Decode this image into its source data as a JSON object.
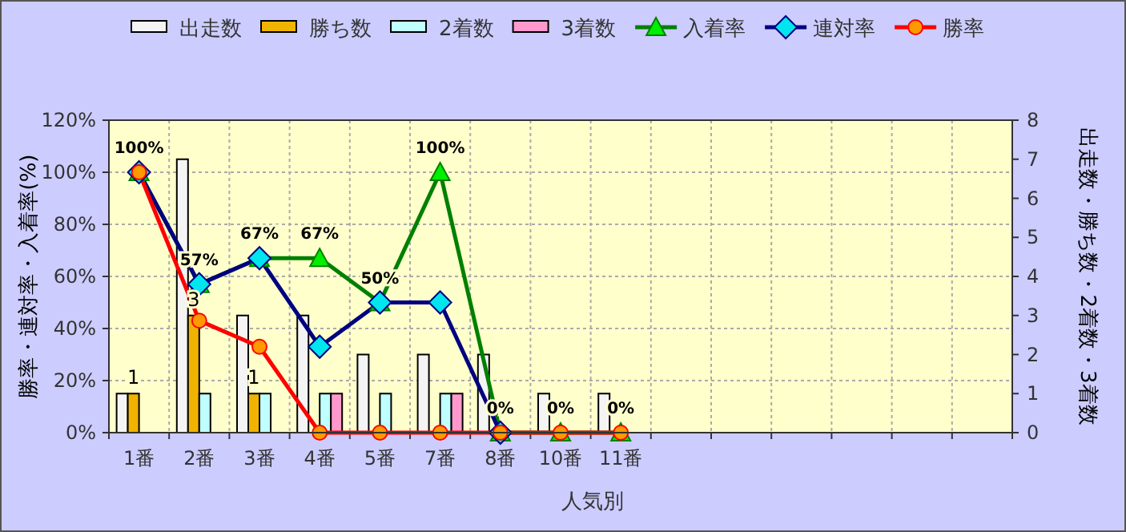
{
  "chart_data": {
    "type": "bar",
    "categories": [
      "1番",
      "2番",
      "3番",
      "4番",
      "5番",
      "7番",
      "8番",
      "10番",
      "11番",
      null,
      null,
      null,
      null,
      null,
      null
    ],
    "xlabel": "人気別",
    "ylabel": "勝率・連対率・入着率(%)",
    "y2label": "出走数・勝ち数・2着数・3着数",
    "ylim": [
      0,
      120
    ],
    "yticks": [
      {
        "value": 0,
        "label": "0%"
      },
      {
        "value": 20,
        "label": "20%"
      },
      {
        "value": 40,
        "label": "40%"
      },
      {
        "value": 60,
        "label": "60%"
      },
      {
        "value": 80,
        "label": "80%"
      },
      {
        "value": 100,
        "label": "100%"
      },
      {
        "value": 120,
        "label": "120%"
      }
    ],
    "y2lim": [
      0,
      8
    ],
    "y2ticks": [
      0,
      1,
      2,
      3,
      4,
      5,
      6,
      7,
      8
    ],
    "grid": true,
    "legend": "top",
    "series": [
      {
        "name": "出走数",
        "axis": "y2",
        "color": "#f4f4f4",
        "values": [
          1,
          7,
          3,
          3,
          2,
          2,
          2,
          1,
          1,
          null,
          null,
          null,
          null,
          null,
          null
        ]
      },
      {
        "name": "勝ち数",
        "axis": "y2",
        "color": "#f0b400",
        "values": [
          1,
          3,
          1,
          0,
          0,
          0,
          0,
          0,
          0,
          null,
          null,
          null,
          null,
          null,
          null
        ],
        "value_labels": [
          "1",
          "3",
          "1",
          null,
          null,
          null,
          null,
          null,
          null,
          null,
          null,
          null,
          null,
          null,
          null
        ]
      },
      {
        "name": "2着数",
        "axis": "y2",
        "color": "#c0ffff",
        "values": [
          0,
          1,
          1,
          1,
          1,
          1,
          0,
          0,
          0,
          null,
          null,
          null,
          null,
          null,
          null
        ]
      },
      {
        "name": "3着数",
        "axis": "y2",
        "color": "#ff99cc",
        "values": [
          0,
          0,
          0,
          1,
          0,
          1,
          0,
          0,
          0,
          null,
          null,
          null,
          null,
          null,
          null
        ]
      },
      {
        "name": "入着率",
        "type": "line",
        "color": "#008000",
        "marker": "triangle",
        "values": [
          100,
          57,
          67,
          67,
          50,
          100,
          0,
          0,
          0,
          null,
          null,
          null,
          null,
          null,
          null
        ],
        "value_labels": [
          "100%",
          "57%",
          "67%",
          "67%",
          "50%",
          "100%",
          "0%",
          "0%",
          "0%",
          null,
          null,
          null,
          null,
          null,
          null
        ]
      },
      {
        "name": "連対率",
        "type": "line",
        "color": "#000080",
        "marker": "diamond",
        "values": [
          100,
          57,
          67,
          33,
          50,
          50,
          0,
          null,
          null,
          null,
          null,
          null,
          null,
          null,
          null
        ]
      },
      {
        "name": "勝率",
        "type": "line",
        "color": "#ff0000",
        "marker": "circle",
        "values": [
          100,
          43,
          33,
          0,
          0,
          0,
          0,
          0,
          0,
          null,
          null,
          null,
          null,
          null,
          null
        ]
      }
    ]
  }
}
